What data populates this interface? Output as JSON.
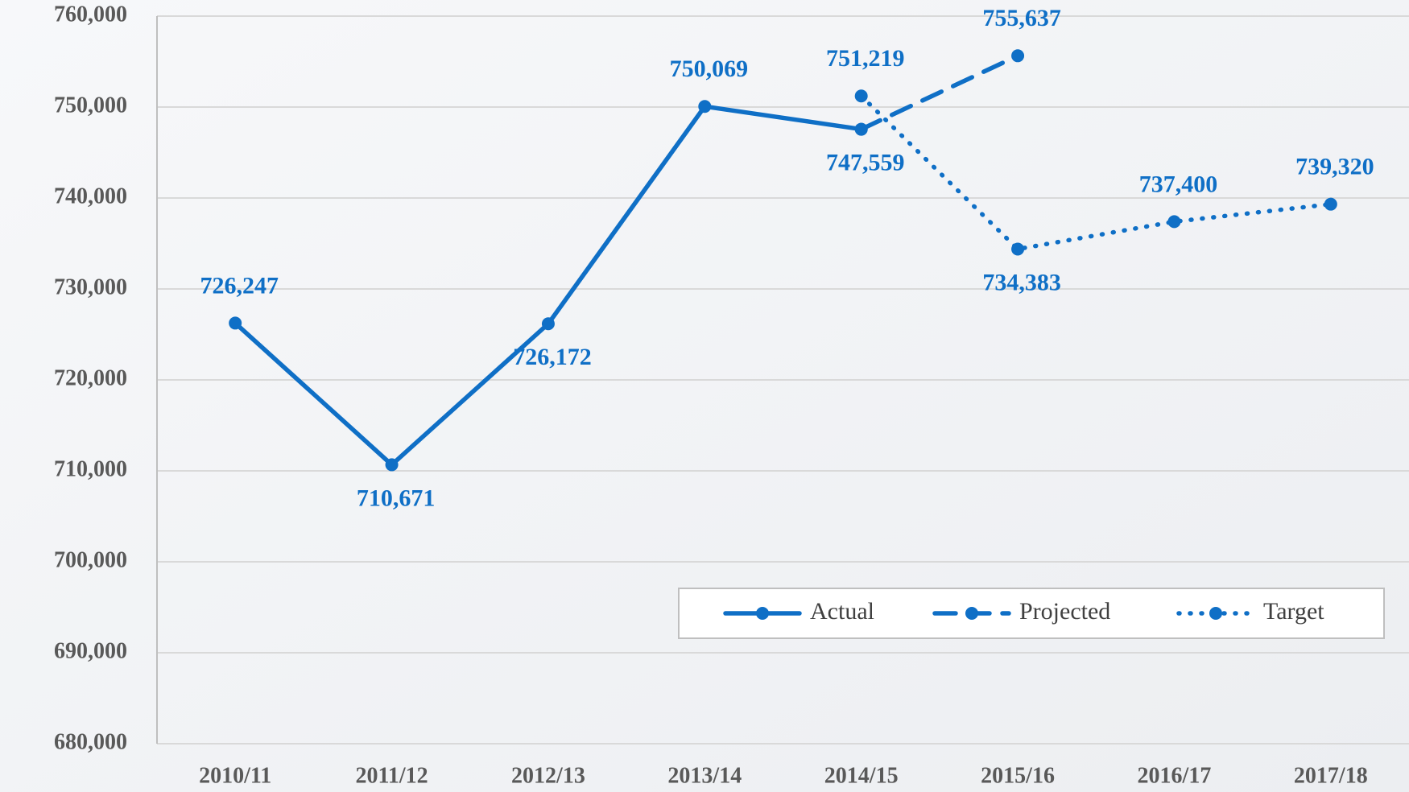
{
  "chart_data": {
    "type": "line",
    "categories": [
      "2010/11",
      "2011/12",
      "2012/13",
      "2013/14",
      "2014/15",
      "2015/16",
      "2016/17",
      "2017/18"
    ],
    "series": [
      {
        "name": "Actual",
        "color": "#0f6fc6",
        "style": "solid",
        "values": [
          726247,
          710671,
          726172,
          750069,
          747559,
          null,
          null,
          null
        ],
        "value_labels": [
          "726,247",
          "710,671",
          "726,172",
          "750,069",
          "747,559",
          null,
          null,
          null
        ]
      },
      {
        "name": "Projected",
        "color": "#0f6fc6",
        "style": "dashed",
        "values": [
          null,
          null,
          null,
          null,
          747559,
          755637,
          null,
          null
        ],
        "value_labels": [
          null,
          null,
          null,
          null,
          null,
          "755,637",
          null,
          null
        ]
      },
      {
        "name": "Target",
        "color": "#0f6fc6",
        "style": "dotted",
        "values": [
          null,
          null,
          null,
          null,
          751219,
          734383,
          737400,
          739320
        ],
        "value_labels": [
          null,
          null,
          null,
          null,
          "751,219",
          "734,383",
          "737,400",
          "739,320"
        ]
      }
    ],
    "ylim": [
      680000,
      760000
    ],
    "yticks": [
      {
        "value": 680000,
        "label": "680,000"
      },
      {
        "value": 690000,
        "label": "690,000"
      },
      {
        "value": 700000,
        "label": "700,000"
      },
      {
        "value": 710000,
        "label": "710,000"
      },
      {
        "value": 720000,
        "label": "720,000"
      },
      {
        "value": 730000,
        "label": "730,000"
      },
      {
        "value": 740000,
        "label": "740,000"
      },
      {
        "value": 750000,
        "label": "750,000"
      },
      {
        "value": 760000,
        "label": "760,000"
      }
    ],
    "grid": true,
    "legend": "bottom-right"
  }
}
